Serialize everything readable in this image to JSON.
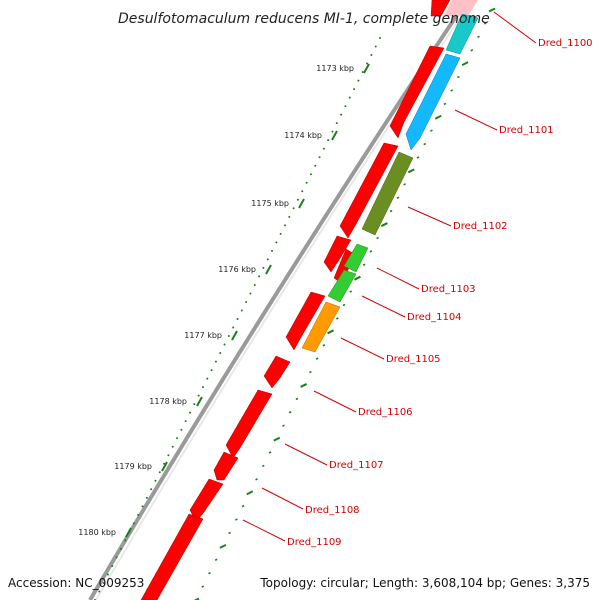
{
  "title": "Desulfotomaculum reducens MI-1, complete genome",
  "accession": "Accession: NC_009253",
  "stats": "Topology: circular; Length: 3,608,104 bp; Genes: 3,375",
  "ticks": [
    "1173 kbp",
    "1174 kbp",
    "1175 kbp",
    "1176 kbp",
    "1177 kbp",
    "1178 kbp",
    "1179 kbp",
    "1180 kbp"
  ],
  "genes": [
    "Dred_1100",
    "Dred_1101",
    "Dred_1102",
    "Dred_1103",
    "Dred_1104",
    "Dred_1105",
    "Dred_1106",
    "Dred_1107",
    "Dred_1108",
    "Dred_1109"
  ],
  "colors": {
    "forward": "#ff0000",
    "cyan": "#17c9c9",
    "lightblue": "#14b8ff",
    "olive": "#6b8e23",
    "green": "#33cc33",
    "orange": "#ff9a00",
    "backbone": "#888888",
    "ticks": "#1e7d1e",
    "label": "#d40000"
  }
}
